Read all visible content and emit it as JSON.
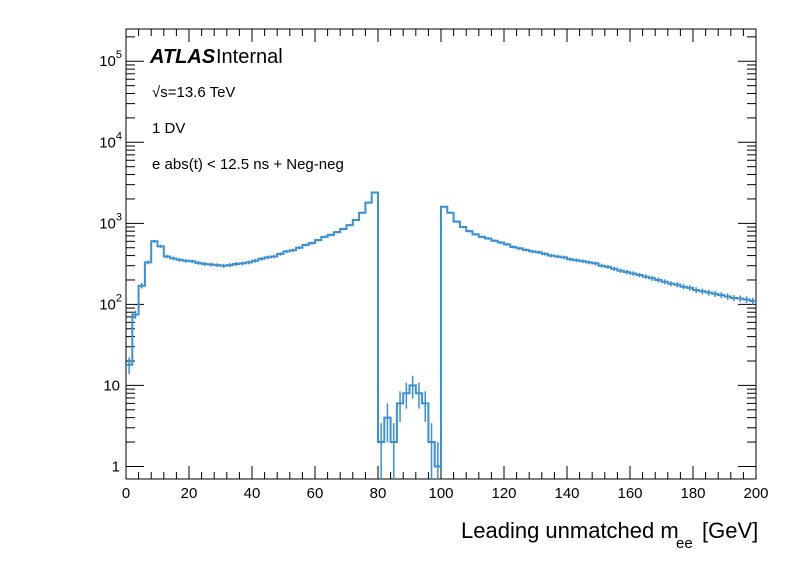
{
  "chart_data": {
    "type": "histogram",
    "experiment_label": "ATLAS",
    "status_label": "Internal",
    "annotations": [
      "√s=13.6 TeV",
      "1 DV",
      "e abs(t) < 12.5 ns + Neg-neg"
    ],
    "xlabel": "Leading unmatched m",
    "xlabel_subscript": "ee",
    "xlabel_unit": "[GeV]",
    "ylabel": "",
    "xlim": [
      0,
      200
    ],
    "ylim": [
      0.7,
      250000
    ],
    "yscale": "log",
    "x_ticks": [
      "0",
      "20",
      "40",
      "60",
      "80",
      "100",
      "120",
      "140",
      "160",
      "180",
      "200"
    ],
    "y_ticks": [
      "1",
      "10",
      "10^2",
      "10^3",
      "10^4",
      "10^5"
    ],
    "line_color": "#3b8fd4",
    "bin_width": 2,
    "series": [
      {
        "x_bin_edges_start": 0,
        "values": [
          18,
          75,
          170,
          330,
          600,
          520,
          390,
          370,
          355,
          345,
          340,
          325,
          315,
          310,
          305,
          300,
          305,
          315,
          320,
          330,
          345,
          365,
          380,
          390,
          420,
          450,
          465,
          500,
          540,
          570,
          620,
          680,
          720,
          780,
          850,
          950,
          1100,
          1350,
          1800,
          2400,
          2,
          4,
          2,
          6,
          8,
          10,
          8,
          6,
          2,
          1,
          1600,
          1350,
          1050,
          900,
          800,
          730,
          680,
          650,
          610,
          580,
          550,
          510,
          490,
          470,
          450,
          440,
          420,
          400,
          390,
          380,
          360,
          350,
          340,
          330,
          320,
          300,
          290,
          275,
          260,
          250,
          240,
          230,
          220,
          210,
          200,
          190,
          180,
          175,
          165,
          160,
          150,
          145,
          140,
          135,
          130,
          125,
          120,
          118,
          115,
          110
        ]
      }
    ]
  }
}
